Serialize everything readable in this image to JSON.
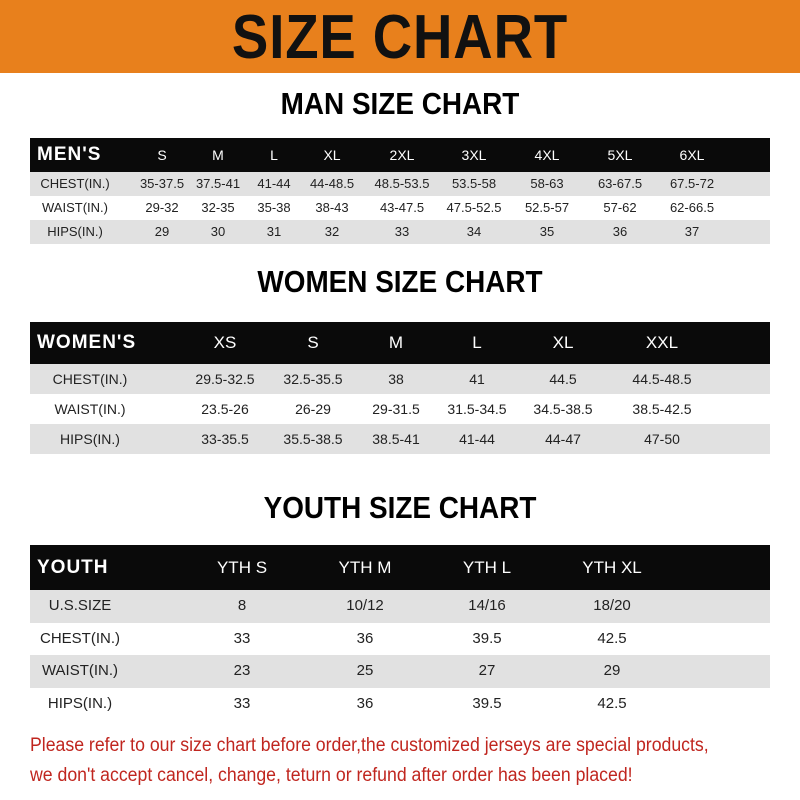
{
  "banner": {
    "title": "SIZE CHART",
    "color": "#e8801c"
  },
  "tables": [
    {
      "title": "MAN SIZE CHART",
      "header_label": "MEN'S",
      "columns": [
        "S",
        "M",
        "L",
        "XL",
        "2XL",
        "3XL",
        "4XL",
        "5XL",
        "6XL"
      ],
      "rows": [
        {
          "label": "CHEST(IN.)",
          "values": [
            "35-37.5",
            "37.5-41",
            "41-44",
            "44-48.5",
            "48.5-53.5",
            "53.5-58",
            "58-63",
            "63-67.5",
            "67.5-72"
          ]
        },
        {
          "label": "WAIST(IN.)",
          "values": [
            "29-32",
            "32-35",
            "35-38",
            "38-43",
            "43-47.5",
            "47.5-52.5",
            "52.5-57",
            "57-62",
            "62-66.5"
          ]
        },
        {
          "label": "HIPS(IN.)",
          "values": [
            "29",
            "30",
            "31",
            "32",
            "33",
            "34",
            "35",
            "36",
            "37"
          ]
        }
      ]
    },
    {
      "title": "WOMEN SIZE CHART",
      "header_label": "WOMEN'S",
      "columns": [
        "XS",
        "S",
        "M",
        "L",
        "XL",
        "XXL"
      ],
      "rows": [
        {
          "label": "CHEST(IN.)",
          "values": [
            "29.5-32.5",
            "32.5-35.5",
            "38",
            "41",
            "44.5",
            "44.5-48.5"
          ]
        },
        {
          "label": "WAIST(IN.)",
          "values": [
            "23.5-26",
            "26-29",
            "29-31.5",
            "31.5-34.5",
            "34.5-38.5",
            "38.5-42.5"
          ]
        },
        {
          "label": "HIPS(IN.)",
          "values": [
            "33-35.5",
            "35.5-38.5",
            "38.5-41",
            "41-44",
            "44-47",
            "47-50"
          ]
        }
      ]
    },
    {
      "title": "YOUTH SIZE CHART",
      "header_label": "YOUTH",
      "columns": [
        "YTH S",
        "YTH M",
        "YTH L",
        "YTH XL"
      ],
      "rows": [
        {
          "label": "U.S.SIZE",
          "values": [
            "8",
            "10/12",
            "14/16",
            "18/20"
          ]
        },
        {
          "label": "CHEST(IN.)",
          "values": [
            "33",
            "36",
            "39.5",
            "42.5"
          ]
        },
        {
          "label": "WAIST(IN.)",
          "values": [
            "23",
            "25",
            "27",
            "29"
          ]
        },
        {
          "label": "HIPS(IN.)",
          "values": [
            "33",
            "36",
            "39.5",
            "42.5"
          ]
        }
      ]
    }
  ],
  "footer": {
    "line1": "Please refer to our size chart before order,the customized jerseys are special products,",
    "line2": "we don't accept cancel, change, teturn or refund after order has been placed!",
    "color": "#c0261f"
  }
}
